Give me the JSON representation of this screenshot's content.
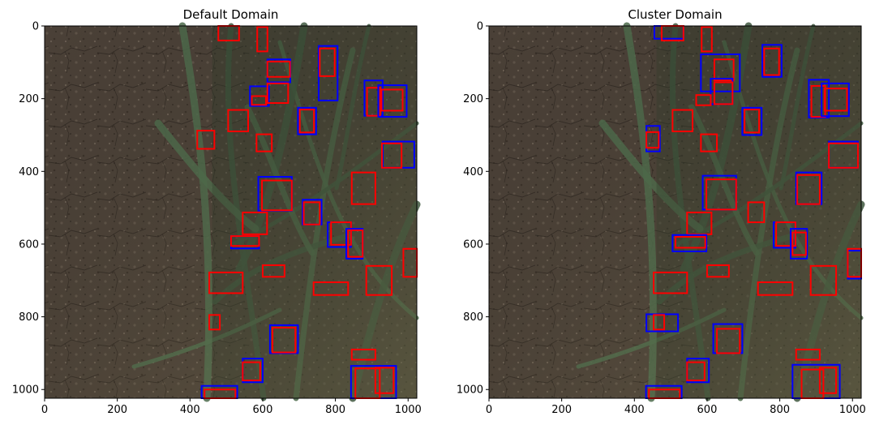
{
  "figure": {
    "panels": [
      "Default Domain",
      "Cluster Domain"
    ]
  },
  "chart_data": [
    {
      "type": "image",
      "title": "Default Domain",
      "xlim": [
        0,
        1024
      ],
      "ylim": [
        1024,
        0
      ],
      "xticks": [
        0,
        200,
        400,
        600,
        800,
        1000
      ],
      "yticks": [
        0,
        200,
        400,
        600,
        800,
        1000
      ],
      "xtick_labels": [
        "0",
        "200",
        "400",
        "600",
        "800",
        "1000"
      ],
      "ytick_labels": [
        "0",
        "200",
        "400",
        "600",
        "800",
        "1000"
      ],
      "colors": {
        "blue": "#0000ff",
        "red": "#ff0000"
      },
      "boxes": [
        {
          "color": "red",
          "x1": 478,
          "y1": 0,
          "x2": 535,
          "y2": 40
        },
        {
          "color": "red",
          "x1": 585,
          "y1": 3,
          "x2": 613,
          "y2": 70
        },
        {
          "color": "blue",
          "x1": 754,
          "y1": 55,
          "x2": 806,
          "y2": 205
        },
        {
          "color": "red",
          "x1": 757,
          "y1": 62,
          "x2": 798,
          "y2": 138
        },
        {
          "color": "blue",
          "x1": 613,
          "y1": 92,
          "x2": 676,
          "y2": 155
        },
        {
          "color": "red",
          "x1": 613,
          "y1": 98,
          "x2": 675,
          "y2": 140
        },
        {
          "color": "blue",
          "x1": 565,
          "y1": 166,
          "x2": 617,
          "y2": 220
        },
        {
          "color": "red",
          "x1": 570,
          "y1": 193,
          "x2": 609,
          "y2": 217
        },
        {
          "color": "red",
          "x1": 613,
          "y1": 158,
          "x2": 670,
          "y2": 212
        },
        {
          "color": "blue",
          "x1": 880,
          "y1": 150,
          "x2": 930,
          "y2": 247
        },
        {
          "color": "red",
          "x1": 887,
          "y1": 170,
          "x2": 923,
          "y2": 247
        },
        {
          "color": "blue",
          "x1": 918,
          "y1": 163,
          "x2": 996,
          "y2": 250
        },
        {
          "color": "red",
          "x1": 927,
          "y1": 175,
          "x2": 985,
          "y2": 233
        },
        {
          "color": "blue",
          "x1": 697,
          "y1": 225,
          "x2": 747,
          "y2": 298
        },
        {
          "color": "red",
          "x1": 702,
          "y1": 230,
          "x2": 741,
          "y2": 293
        },
        {
          "color": "red",
          "x1": 505,
          "y1": 231,
          "x2": 560,
          "y2": 290
        },
        {
          "color": "red",
          "x1": 420,
          "y1": 288,
          "x2": 467,
          "y2": 338
        },
        {
          "color": "red",
          "x1": 583,
          "y1": 298,
          "x2": 625,
          "y2": 345
        },
        {
          "color": "blue",
          "x1": 930,
          "y1": 318,
          "x2": 1017,
          "y2": 390
        },
        {
          "color": "red",
          "x1": 928,
          "y1": 323,
          "x2": 982,
          "y2": 390
        },
        {
          "color": "blue",
          "x1": 588,
          "y1": 415,
          "x2": 680,
          "y2": 508
        },
        {
          "color": "red",
          "x1": 598,
          "y1": 425,
          "x2": 680,
          "y2": 507
        },
        {
          "color": "red",
          "x1": 845,
          "y1": 403,
          "x2": 910,
          "y2": 490
        },
        {
          "color": "blue",
          "x1": 710,
          "y1": 478,
          "x2": 762,
          "y2": 546
        },
        {
          "color": "red",
          "x1": 713,
          "y1": 485,
          "x2": 757,
          "y2": 546
        },
        {
          "color": "red",
          "x1": 545,
          "y1": 513,
          "x2": 612,
          "y2": 573
        },
        {
          "color": "blue",
          "x1": 779,
          "y1": 540,
          "x2": 843,
          "y2": 608
        },
        {
          "color": "red",
          "x1": 788,
          "y1": 540,
          "x2": 843,
          "y2": 602
        },
        {
          "color": "blue",
          "x1": 830,
          "y1": 558,
          "x2": 875,
          "y2": 640
        },
        {
          "color": "red",
          "x1": 835,
          "y1": 562,
          "x2": 875,
          "y2": 635
        },
        {
          "color": "blue",
          "x1": 513,
          "y1": 578,
          "x2": 590,
          "y2": 612
        },
        {
          "color": "red",
          "x1": 513,
          "y1": 578,
          "x2": 590,
          "y2": 605
        },
        {
          "color": "red",
          "x1": 987,
          "y1": 613,
          "x2": 1024,
          "y2": 690
        },
        {
          "color": "red",
          "x1": 600,
          "y1": 658,
          "x2": 660,
          "y2": 690
        },
        {
          "color": "red",
          "x1": 885,
          "y1": 660,
          "x2": 955,
          "y2": 740
        },
        {
          "color": "red",
          "x1": 453,
          "y1": 678,
          "x2": 545,
          "y2": 735
        },
        {
          "color": "red",
          "x1": 740,
          "y1": 705,
          "x2": 835,
          "y2": 740
        },
        {
          "color": "red",
          "x1": 453,
          "y1": 795,
          "x2": 482,
          "y2": 835
        },
        {
          "color": "blue",
          "x1": 620,
          "y1": 823,
          "x2": 697,
          "y2": 900
        },
        {
          "color": "red",
          "x1": 627,
          "y1": 830,
          "x2": 690,
          "y2": 898
        },
        {
          "color": "red",
          "x1": 845,
          "y1": 890,
          "x2": 910,
          "y2": 918
        },
        {
          "color": "blue",
          "x1": 545,
          "y1": 915,
          "x2": 600,
          "y2": 980
        },
        {
          "color": "red",
          "x1": 545,
          "y1": 925,
          "x2": 593,
          "y2": 975
        },
        {
          "color": "blue",
          "x1": 843,
          "y1": 935,
          "x2": 967,
          "y2": 1024
        },
        {
          "color": "red",
          "x1": 855,
          "y1": 942,
          "x2": 922,
          "y2": 1024
        },
        {
          "color": "red",
          "x1": 910,
          "y1": 940,
          "x2": 960,
          "y2": 1010
        },
        {
          "color": "blue",
          "x1": 432,
          "y1": 990,
          "x2": 530,
          "y2": 1024
        },
        {
          "color": "red",
          "x1": 440,
          "y1": 1000,
          "x2": 525,
          "y2": 1024
        }
      ]
    },
    {
      "type": "image",
      "title": "Cluster Domain",
      "xlim": [
        0,
        1024
      ],
      "ylim": [
        1024,
        0
      ],
      "xticks": [
        0,
        200,
        400,
        600,
        800,
        1000
      ],
      "yticks": [
        0,
        200,
        400,
        600,
        800,
        1000
      ],
      "xtick_labels": [
        "0",
        "200",
        "400",
        "600",
        "800",
        "1000"
      ],
      "ytick_labels": [
        "0",
        "200",
        "400",
        "600",
        "800",
        "1000"
      ],
      "colors": {
        "blue": "#0000ff",
        "red": "#ff0000"
      },
      "boxes": [
        {
          "color": "blue",
          "x1": 455,
          "y1": 0,
          "x2": 535,
          "y2": 35
        },
        {
          "color": "red",
          "x1": 475,
          "y1": 0,
          "x2": 535,
          "y2": 40
        },
        {
          "color": "red",
          "x1": 585,
          "y1": 3,
          "x2": 613,
          "y2": 70
        },
        {
          "color": "blue",
          "x1": 752,
          "y1": 52,
          "x2": 805,
          "y2": 140
        },
        {
          "color": "red",
          "x1": 757,
          "y1": 62,
          "x2": 798,
          "y2": 135
        },
        {
          "color": "blue",
          "x1": 583,
          "y1": 78,
          "x2": 690,
          "y2": 180
        },
        {
          "color": "red",
          "x1": 620,
          "y1": 92,
          "x2": 673,
          "y2": 150
        },
        {
          "color": "blue",
          "x1": 610,
          "y1": 145,
          "x2": 670,
          "y2": 215
        },
        {
          "color": "red",
          "x1": 620,
          "y1": 155,
          "x2": 670,
          "y2": 215
        },
        {
          "color": "red",
          "x1": 570,
          "y1": 190,
          "x2": 610,
          "y2": 218
        },
        {
          "color": "blue",
          "x1": 880,
          "y1": 148,
          "x2": 935,
          "y2": 252
        },
        {
          "color": "red",
          "x1": 887,
          "y1": 165,
          "x2": 925,
          "y2": 250
        },
        {
          "color": "blue",
          "x1": 915,
          "y1": 158,
          "x2": 990,
          "y2": 248
        },
        {
          "color": "red",
          "x1": 923,
          "y1": 172,
          "x2": 985,
          "y2": 233
        },
        {
          "color": "blue",
          "x1": 697,
          "y1": 225,
          "x2": 750,
          "y2": 300
        },
        {
          "color": "red",
          "x1": 703,
          "y1": 230,
          "x2": 743,
          "y2": 293
        },
        {
          "color": "red",
          "x1": 505,
          "y1": 231,
          "x2": 560,
          "y2": 290
        },
        {
          "color": "blue",
          "x1": 433,
          "y1": 275,
          "x2": 470,
          "y2": 345
        },
        {
          "color": "red",
          "x1": 433,
          "y1": 292,
          "x2": 467,
          "y2": 335
        },
        {
          "color": "red",
          "x1": 583,
          "y1": 298,
          "x2": 627,
          "y2": 345
        },
        {
          "color": "blue",
          "x1": 935,
          "y1": 318,
          "x2": 1015,
          "y2": 390
        },
        {
          "color": "red",
          "x1": 935,
          "y1": 323,
          "x2": 1015,
          "y2": 390
        },
        {
          "color": "blue",
          "x1": 588,
          "y1": 412,
          "x2": 680,
          "y2": 505
        },
        {
          "color": "red",
          "x1": 598,
          "y1": 422,
          "x2": 680,
          "y2": 505
        },
        {
          "color": "blue",
          "x1": 845,
          "y1": 403,
          "x2": 915,
          "y2": 490
        },
        {
          "color": "red",
          "x1": 848,
          "y1": 410,
          "x2": 910,
          "y2": 490
        },
        {
          "color": "red",
          "x1": 713,
          "y1": 485,
          "x2": 757,
          "y2": 540
        },
        {
          "color": "red",
          "x1": 545,
          "y1": 513,
          "x2": 612,
          "y2": 573
        },
        {
          "color": "blue",
          "x1": 783,
          "y1": 540,
          "x2": 843,
          "y2": 610
        },
        {
          "color": "red",
          "x1": 790,
          "y1": 540,
          "x2": 843,
          "y2": 605
        },
        {
          "color": "blue",
          "x1": 830,
          "y1": 558,
          "x2": 875,
          "y2": 640
        },
        {
          "color": "red",
          "x1": 835,
          "y1": 568,
          "x2": 872,
          "y2": 630
        },
        {
          "color": "blue",
          "x1": 505,
          "y1": 575,
          "x2": 598,
          "y2": 620
        },
        {
          "color": "red",
          "x1": 513,
          "y1": 580,
          "x2": 595,
          "y2": 610
        },
        {
          "color": "blue",
          "x1": 987,
          "y1": 618,
          "x2": 1024,
          "y2": 695
        },
        {
          "color": "red",
          "x1": 987,
          "y1": 613,
          "x2": 1024,
          "y2": 690
        },
        {
          "color": "red",
          "x1": 600,
          "y1": 658,
          "x2": 660,
          "y2": 690
        },
        {
          "color": "red",
          "x1": 885,
          "y1": 660,
          "x2": 955,
          "y2": 740
        },
        {
          "color": "red",
          "x1": 453,
          "y1": 678,
          "x2": 545,
          "y2": 735
        },
        {
          "color": "red",
          "x1": 740,
          "y1": 705,
          "x2": 835,
          "y2": 740
        },
        {
          "color": "blue",
          "x1": 433,
          "y1": 793,
          "x2": 520,
          "y2": 840
        },
        {
          "color": "red",
          "x1": 453,
          "y1": 795,
          "x2": 482,
          "y2": 835
        },
        {
          "color": "blue",
          "x1": 617,
          "y1": 820,
          "x2": 697,
          "y2": 900
        },
        {
          "color": "red",
          "x1": 627,
          "y1": 833,
          "x2": 690,
          "y2": 900
        },
        {
          "color": "red",
          "x1": 845,
          "y1": 890,
          "x2": 910,
          "y2": 918
        },
        {
          "color": "blue",
          "x1": 545,
          "y1": 915,
          "x2": 605,
          "y2": 980
        },
        {
          "color": "red",
          "x1": 545,
          "y1": 925,
          "x2": 593,
          "y2": 975
        },
        {
          "color": "blue",
          "x1": 835,
          "y1": 932,
          "x2": 965,
          "y2": 1024
        },
        {
          "color": "red",
          "x1": 860,
          "y1": 945,
          "x2": 920,
          "y2": 1024
        },
        {
          "color": "red",
          "x1": 910,
          "y1": 940,
          "x2": 955,
          "y2": 1010
        },
        {
          "color": "blue",
          "x1": 432,
          "y1": 990,
          "x2": 530,
          "y2": 1024
        },
        {
          "color": "red",
          "x1": 440,
          "y1": 1000,
          "x2": 525,
          "y2": 1024
        }
      ]
    }
  ]
}
